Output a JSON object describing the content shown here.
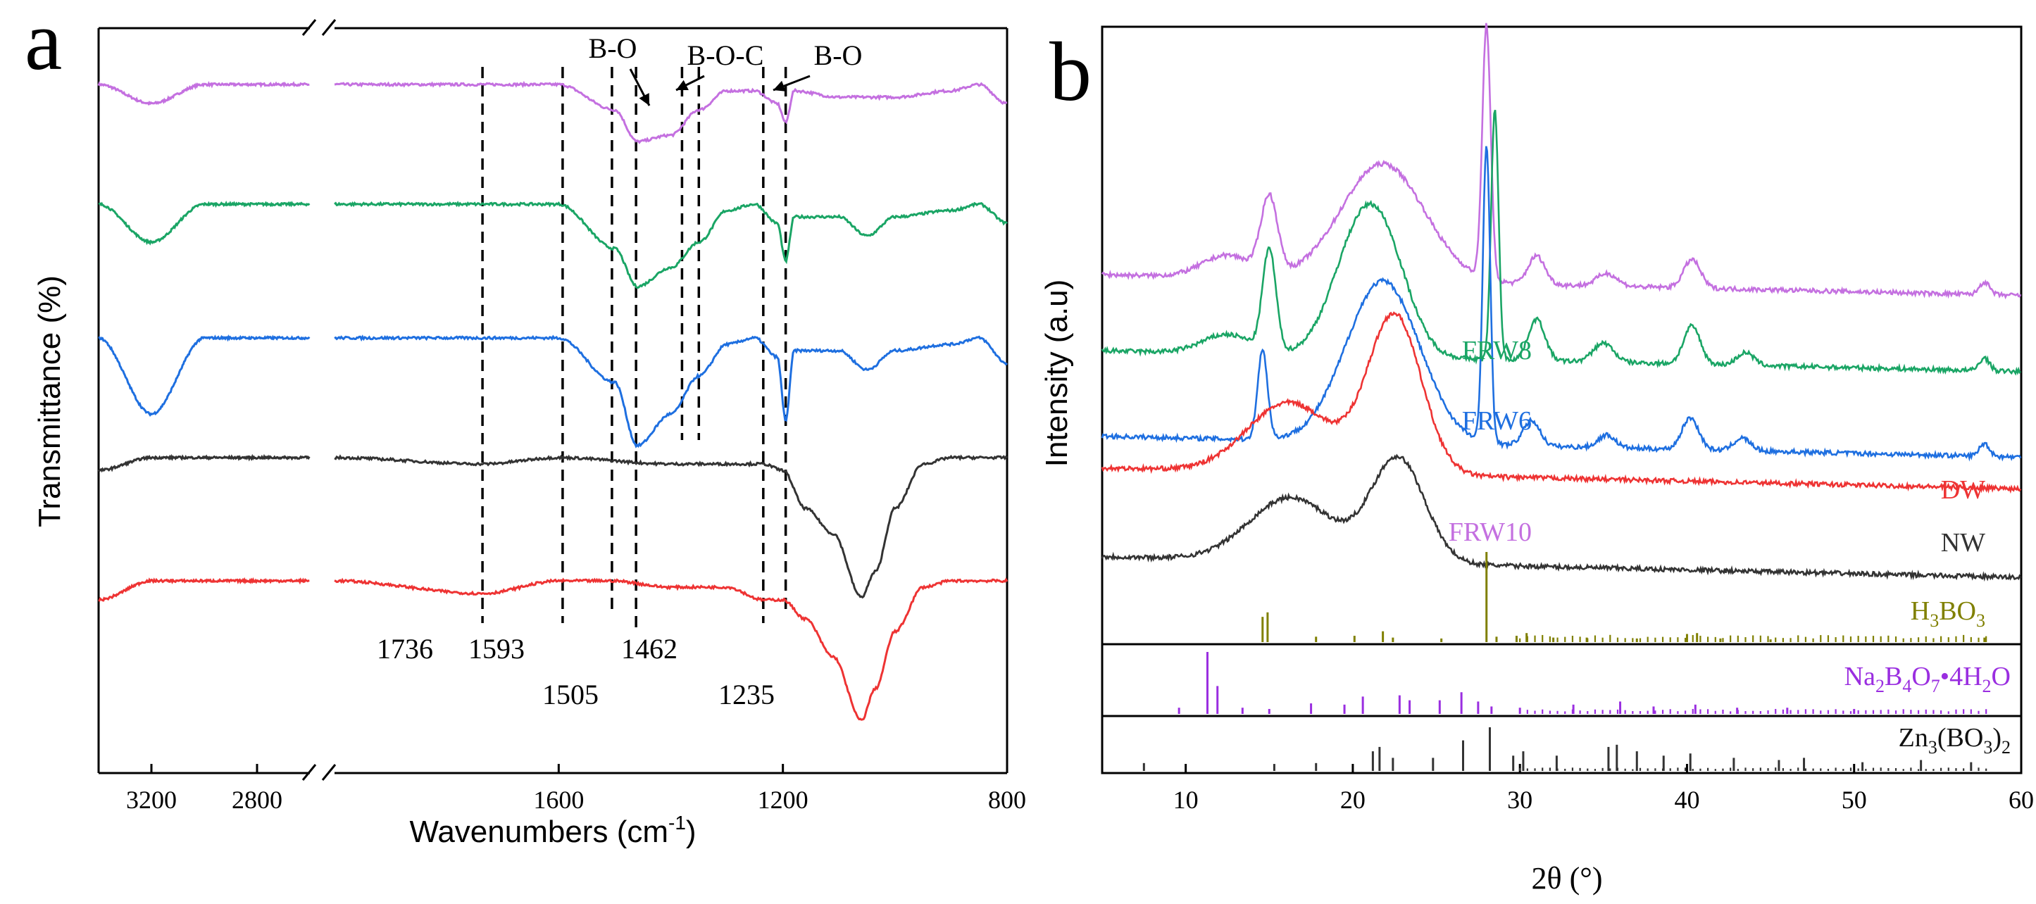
{
  "panel_a": {
    "letter": "a",
    "xlabel_main": "Wavenumbers (cm",
    "xlabel_sup": "-1",
    "xlabel_end": ")",
    "ylabel": "Transmittance (%)",
    "left_ticks": [
      3200,
      2800
    ],
    "right_ticks": [
      1600,
      1200,
      800
    ]
  },
  "panel_b": {
    "letter": "b",
    "xlabel": "2θ (°)",
    "ylabel": "Intensity (a.u)",
    "xticks": [
      10,
      20,
      30,
      40,
      50,
      60
    ]
  },
  "colors": {
    "purple": "#c470e0",
    "green": "#1aa565",
    "blue": "#1e6fe0",
    "black": "#333333",
    "red": "#ee3333",
    "olive": "#808000",
    "violet": "#9a2ee0"
  },
  "chart_data": [
    {
      "type": "line",
      "title": "",
      "panel": "a",
      "xlabel": "Wavenumbers (cm-1)",
      "ylabel": "Transmittance (%)",
      "axis_break": [
        2600,
        2000
      ],
      "xlim_left": [
        3400,
        2600
      ],
      "xlim_right": [
        2000,
        800
      ],
      "reference_lines": [
        1736,
        1593,
        1505,
        1462,
        1380,
        1350,
        1235,
        1195
      ],
      "bottom_labels": [
        {
          "text": "1736",
          "x": 1736
        },
        {
          "text": "1593",
          "x": 1593
        },
        {
          "text": "1505",
          "x": 1505
        },
        {
          "text": "1462",
          "x": 1462
        },
        {
          "text": "1235",
          "x": 1235
        }
      ],
      "annotations": [
        {
          "text": "B-O",
          "x": 1380
        },
        {
          "text": "B-O-C",
          "x": 1350
        },
        {
          "text": "B-O",
          "x": 1195
        }
      ],
      "series": [
        {
          "name": "FRW10",
          "color": "#c470e0",
          "offset": 4,
          "x": [
            3400,
            3200,
            3000,
            2600,
            2000,
            1600,
            1500,
            1460,
            1400,
            1350,
            1300,
            1250,
            1210,
            1195,
            1180,
            1100,
            1000,
            900,
            850,
            800
          ],
          "values": [
            0,
            -3,
            0,
            0,
            0,
            0,
            -4,
            -9,
            -8,
            -4,
            -1,
            -1,
            -3,
            -6,
            -1,
            -2,
            -2,
            -1,
            0,
            -3
          ]
        },
        {
          "name": "FRW8",
          "color": "#1aa565",
          "offset": 3,
          "x": [
            3400,
            3200,
            3000,
            2600,
            2000,
            1600,
            1500,
            1460,
            1400,
            1350,
            1300,
            1250,
            1210,
            1195,
            1180,
            1100,
            1050,
            1000,
            900,
            850,
            800
          ],
          "values": [
            0,
            -6,
            0,
            0,
            0,
            0,
            -7,
            -13,
            -10,
            -6,
            -1,
            0,
            -3,
            -9,
            -2,
            -2,
            -5,
            -2,
            -1,
            0,
            -3
          ]
        },
        {
          "name": "FRW6",
          "color": "#1e6fe0",
          "offset": 2,
          "x": [
            3400,
            3200,
            3000,
            2600,
            2000,
            1600,
            1500,
            1460,
            1400,
            1350,
            1300,
            1250,
            1210,
            1195,
            1180,
            1100,
            1050,
            1000,
            900,
            850,
            800
          ],
          "values": [
            0,
            -12,
            0,
            0,
            0,
            0,
            -7,
            -17,
            -12,
            -6,
            -1,
            0,
            -3,
            -13,
            -2,
            -2,
            -5,
            -2,
            -1,
            0,
            -4
          ]
        },
        {
          "name": "NW",
          "color": "#333333",
          "offset": 1,
          "x": [
            3400,
            3200,
            3000,
            2600,
            2000,
            1736,
            1600,
            1400,
            1235,
            1200,
            1160,
            1110,
            1060,
            1035,
            1000,
            950,
            900,
            800
          ],
          "values": [
            -2,
            0,
            0,
            0,
            0,
            -1,
            0,
            -1,
            -1,
            -2,
            -8,
            -12,
            -22,
            -18,
            -8,
            -1,
            0,
            0
          ]
        },
        {
          "name": "DW",
          "color": "#ee3333",
          "offset": 0,
          "x": [
            3400,
            3200,
            3000,
            2600,
            2000,
            1736,
            1600,
            1505,
            1400,
            1300,
            1235,
            1200,
            1160,
            1110,
            1060,
            1035,
            1000,
            950,
            900,
            800
          ],
          "values": [
            -3,
            0,
            0,
            0,
            0,
            -2,
            0,
            0,
            -1,
            -1,
            -3,
            -3,
            -6,
            -12,
            -22,
            -17,
            -8,
            -1,
            0,
            0
          ]
        }
      ]
    },
    {
      "type": "line",
      "title": "",
      "panel": "b",
      "xlabel": "2θ (°)",
      "ylabel": "Intensity (a.u)",
      "xlim": [
        5,
        60
      ],
      "series": [
        {
          "name": "FRW10",
          "color": "#c470e0",
          "baseline": 5.0,
          "peaks": [
            [
              12.5,
              0.35,
              1.5
            ],
            [
              15.0,
              1.2,
              0.5
            ],
            [
              21.8,
              1.85,
              2.5
            ],
            [
              28.0,
              4.0,
              0.25
            ],
            [
              31.0,
              0.45,
              0.5
            ],
            [
              35.2,
              0.2,
              0.6
            ],
            [
              40.3,
              0.45,
              0.5
            ],
            [
              57.8,
              0.2,
              0.3
            ]
          ]
        },
        {
          "name": "FRW8",
          "color": "#1aa565",
          "baseline": 3.8,
          "peaks": [
            [
              12.5,
              0.3,
              1.5
            ],
            [
              15.0,
              1.6,
              0.4
            ],
            [
              20.2,
              1.55,
              1.6
            ],
            [
              22.0,
              1.3,
              1.5
            ],
            [
              28.5,
              3.95,
              0.22
            ],
            [
              31.0,
              0.65,
              0.5
            ],
            [
              35.0,
              0.3,
              0.6
            ],
            [
              40.3,
              0.6,
              0.5
            ],
            [
              43.5,
              0.2,
              0.5
            ],
            [
              57.8,
              0.2,
              0.3
            ]
          ]
        },
        {
          "name": "FRW6",
          "color": "#1e6fe0",
          "baseline": 2.45,
          "peaks": [
            [
              14.6,
              1.4,
              0.3
            ],
            [
              21.8,
              2.55,
              2.2
            ],
            [
              28.0,
              4.7,
              0.22
            ],
            [
              30.7,
              0.4,
              0.5
            ],
            [
              35.2,
              0.2,
              0.5
            ],
            [
              40.2,
              0.5,
              0.5
            ],
            [
              43.3,
              0.2,
              0.5
            ],
            [
              57.8,
              0.2,
              0.3
            ]
          ]
        },
        {
          "name": "DW",
          "color": "#ee3333",
          "baseline": 1.95,
          "peaks": [
            [
              16.2,
              1.1,
              2.5
            ],
            [
              22.5,
              2.5,
              1.6
            ]
          ]
        },
        {
          "name": "NW",
          "color": "#333333",
          "baseline": 0.55,
          "peaks": [
            [
              16.3,
              1.0,
              2.5
            ],
            [
              22.7,
              1.65,
              1.6
            ]
          ]
        }
      ],
      "reference_patterns": [
        {
          "name": "H3BO3",
          "label_main": "H",
          "label_sub1": "3",
          "label_mid": "BO",
          "label_sub2": "3",
          "color": "#808000",
          "sticks": [
            [
              14.6,
              0.28
            ],
            [
              14.9,
              0.33
            ],
            [
              17.8,
              0.06
            ],
            [
              20.1,
              0.07
            ],
            [
              21.8,
              0.12
            ],
            [
              22.4,
              0.05
            ],
            [
              25.3,
              0.04
            ],
            [
              28.0,
              1.0
            ],
            [
              28.6,
              0.06
            ],
            [
              29.8,
              0.07
            ],
            [
              30.4,
              0.1
            ],
            [
              32.0,
              0.05
            ],
            [
              34.0,
              0.05
            ],
            [
              37.0,
              0.04
            ],
            [
              40.0,
              0.09
            ],
            [
              40.6,
              0.1
            ],
            [
              42.0,
              0.04
            ],
            [
              45.0,
              0.03
            ],
            [
              57.8,
              0.05
            ]
          ]
        },
        {
          "name": "Na2B4O7•4H2O",
          "color": "#9a2ee0",
          "sticks": [
            [
              9.6,
              0.1
            ],
            [
              11.3,
              1.0
            ],
            [
              11.9,
              0.45
            ],
            [
              13.4,
              0.1
            ],
            [
              15.0,
              0.08
            ],
            [
              17.5,
              0.17
            ],
            [
              19.5,
              0.15
            ],
            [
              20.6,
              0.28
            ],
            [
              22.8,
              0.3
            ],
            [
              23.4,
              0.22
            ],
            [
              25.2,
              0.22
            ],
            [
              26.5,
              0.35
            ],
            [
              27.5,
              0.2
            ],
            [
              28.3,
              0.12
            ],
            [
              30.0,
              0.1
            ],
            [
              33.2,
              0.15
            ],
            [
              36.0,
              0.2
            ],
            [
              38.0,
              0.12
            ],
            [
              40.5,
              0.15
            ],
            [
              43.0,
              0.1
            ],
            [
              46.0,
              0.1
            ],
            [
              50.0,
              0.08
            ]
          ]
        },
        {
          "name": "Zn3(BO3)2",
          "color": "#333333",
          "sticks": [
            [
              7.5,
              0.18
            ],
            [
              15.3,
              0.16
            ],
            [
              17.8,
              0.18
            ],
            [
              21.2,
              0.45
            ],
            [
              21.6,
              0.55
            ],
            [
              22.4,
              0.3
            ],
            [
              24.8,
              0.3
            ],
            [
              26.6,
              0.7
            ],
            [
              28.2,
              1.0
            ],
            [
              29.6,
              0.35
            ],
            [
              30.2,
              0.45
            ],
            [
              32.2,
              0.35
            ],
            [
              35.3,
              0.55
            ],
            [
              35.8,
              0.6
            ],
            [
              37.0,
              0.45
            ],
            [
              38.6,
              0.35
            ],
            [
              40.2,
              0.4
            ],
            [
              42.8,
              0.3
            ],
            [
              45.5,
              0.25
            ],
            [
              47.0,
              0.3
            ],
            [
              50.5,
              0.2
            ],
            [
              54.0,
              0.25
            ],
            [
              57.0,
              0.2
            ]
          ]
        }
      ],
      "pattern_labels": {
        "H3BO3": {
          "p1": "H",
          "s1": "3",
          "p2": "BO",
          "s2": "3"
        },
        "borax": {
          "p1": "Na",
          "s1": "2",
          "p2": "B",
          "s2": "4",
          "p3": "O",
          "s3": "7",
          "p4": "•4H",
          "s4": "2",
          "p5": "O"
        },
        "zinc": {
          "p1": "Zn",
          "s1": "3",
          "p2": "(BO",
          "s2": "3",
          "p3": ")",
          "s3": "2"
        }
      }
    }
  ]
}
